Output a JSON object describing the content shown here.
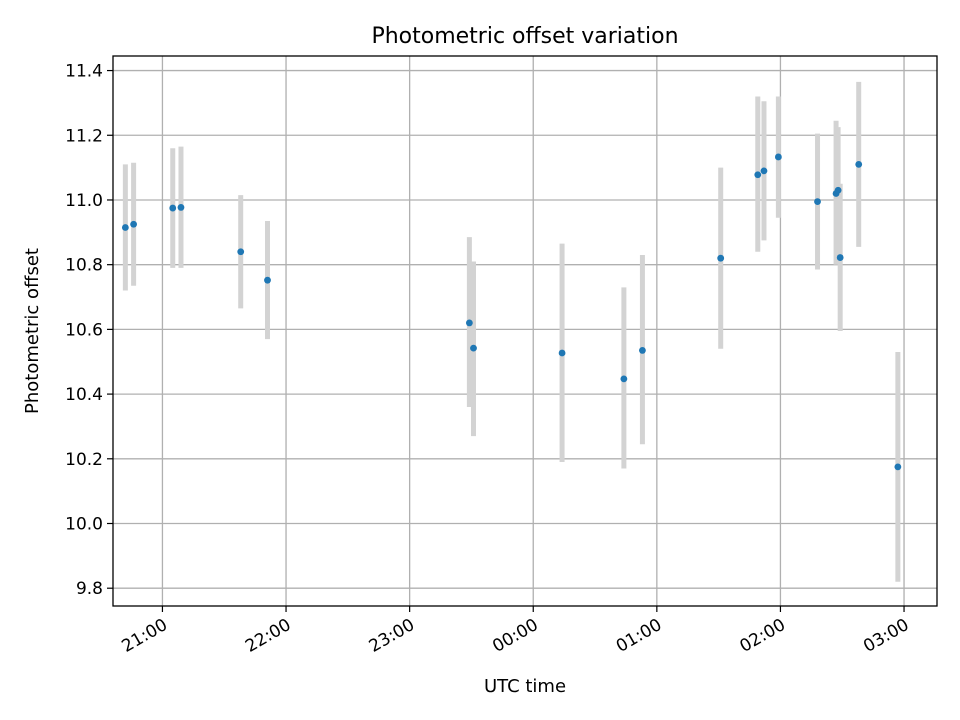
{
  "chart_data": {
    "type": "scatter",
    "title": "Photometric offset variation",
    "xlabel": "UTC time",
    "ylabel": "Photometric offset",
    "x_ticks": [
      "21:00",
      "22:00",
      "23:00",
      "00:00",
      "01:00",
      "02:00",
      "03:00"
    ],
    "y_ticks": [
      "9.8",
      "10.0",
      "10.2",
      "10.4",
      "10.6",
      "10.8",
      "11.0",
      "11.2",
      "11.4"
    ],
    "xlim": [
      "20:36",
      "03:16"
    ],
    "ylim": [
      9.745,
      11.445
    ],
    "grid": true,
    "colors": {
      "point": "#1f77b4",
      "errorbar": "#d3d3d3",
      "grid": "#b0b0b0"
    },
    "points": [
      {
        "x": "20:42",
        "y": 10.915,
        "ylo": 10.72,
        "yhi": 11.11
      },
      {
        "x": "20:46",
        "y": 10.925,
        "ylo": 10.735,
        "yhi": 11.115
      },
      {
        "x": "21:05",
        "y": 10.975,
        "ylo": 10.79,
        "yhi": 11.16
      },
      {
        "x": "21:09",
        "y": 10.977,
        "ylo": 10.79,
        "yhi": 11.165
      },
      {
        "x": "21:38",
        "y": 10.84,
        "ylo": 10.665,
        "yhi": 11.015
      },
      {
        "x": "21:51",
        "y": 10.752,
        "ylo": 10.57,
        "yhi": 10.935
      },
      {
        "x": "23:29",
        "y": 10.62,
        "ylo": 10.36,
        "yhi": 10.885
      },
      {
        "x": "23:31",
        "y": 10.542,
        "ylo": 10.27,
        "yhi": 10.81
      },
      {
        "x": "00:14",
        "y": 10.527,
        "ylo": 10.19,
        "yhi": 10.865
      },
      {
        "x": "00:44",
        "y": 10.447,
        "ylo": 10.17,
        "yhi": 10.73
      },
      {
        "x": "00:53",
        "y": 10.535,
        "ylo": 10.245,
        "yhi": 10.83
      },
      {
        "x": "01:31",
        "y": 10.82,
        "ylo": 10.54,
        "yhi": 11.1
      },
      {
        "x": "01:49",
        "y": 11.078,
        "ylo": 10.84,
        "yhi": 11.32
      },
      {
        "x": "01:52",
        "y": 11.09,
        "ylo": 10.875,
        "yhi": 11.305
      },
      {
        "x": "01:59",
        "y": 11.133,
        "ylo": 10.945,
        "yhi": 11.32
      },
      {
        "x": "02:18",
        "y": 10.995,
        "ylo": 10.785,
        "yhi": 11.205
      },
      {
        "x": "02:27",
        "y": 11.02,
        "ylo": 10.8,
        "yhi": 11.245
      },
      {
        "x": "02:28",
        "y": 11.03,
        "ylo": 10.835,
        "yhi": 11.225
      },
      {
        "x": "02:29",
        "y": 10.822,
        "ylo": 10.595,
        "yhi": 11.05
      },
      {
        "x": "02:38",
        "y": 11.11,
        "ylo": 10.855,
        "yhi": 11.365
      },
      {
        "x": "02:57",
        "y": 10.175,
        "ylo": 9.82,
        "yhi": 10.53
      }
    ]
  }
}
